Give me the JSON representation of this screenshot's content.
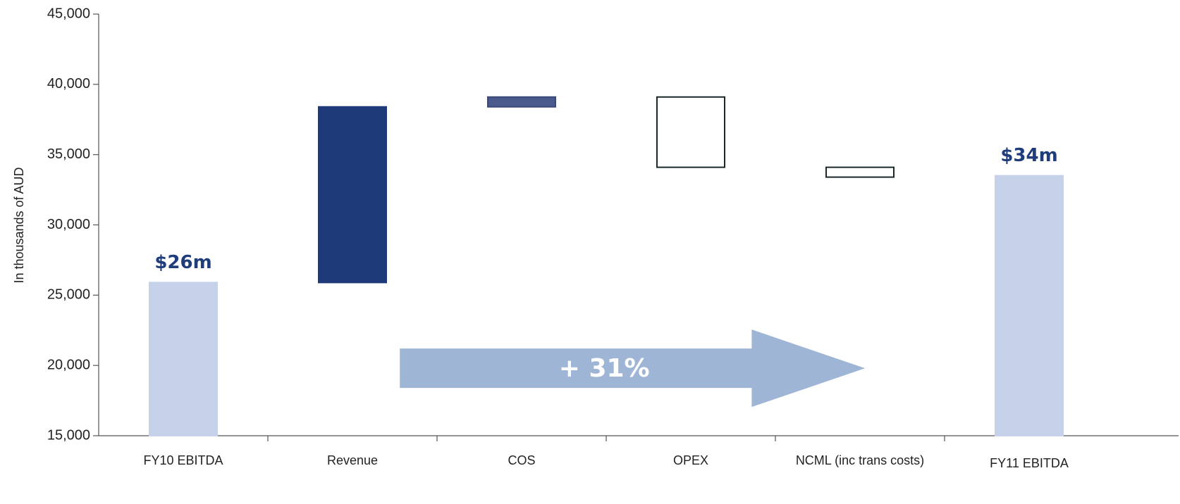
{
  "chart_data": {
    "type": "waterfall",
    "y_label": "In thousands of AUD",
    "categories": [
      "FY10 EBITDA",
      "Revenue",
      "COS",
      "OPEX",
      "NCML (inc trans costs)",
      "FY11 EBITDA"
    ],
    "measures": [
      "total",
      "relative",
      "relative",
      "relative",
      "relative",
      "total"
    ],
    "values": [
      25900,
      12500,
      700,
      -5000,
      -700,
      33500
    ],
    "value_labels": [
      "$26m",
      null,
      null,
      null,
      null,
      "$34m"
    ],
    "colors": [
      "#c6d2ea",
      "#1e3a78",
      "#4b5a8c",
      "#ffffff",
      "#ffffff",
      "#c6d2ea"
    ],
    "edge_colors": [
      "#c6d2ea",
      "#1e3a78",
      "#3a4a7a",
      "#1a2a2a",
      "#1a2a2a",
      "#c6d2ea"
    ],
    "arrow_label": "+ 31%",
    "arrow_color": "#9fb5d6",
    "ylim": [
      15000,
      45000
    ],
    "yticks": [
      {
        "value": 15000,
        "label": "15,000"
      },
      {
        "value": 20000,
        "label": "20,000"
      },
      {
        "value": 25000,
        "label": "25,000"
      },
      {
        "value": 30000,
        "label": "30,000"
      },
      {
        "value": 35000,
        "label": "35,000"
      },
      {
        "value": 40000,
        "label": "40,000"
      },
      {
        "value": 45000,
        "label": "45,000"
      }
    ]
  }
}
